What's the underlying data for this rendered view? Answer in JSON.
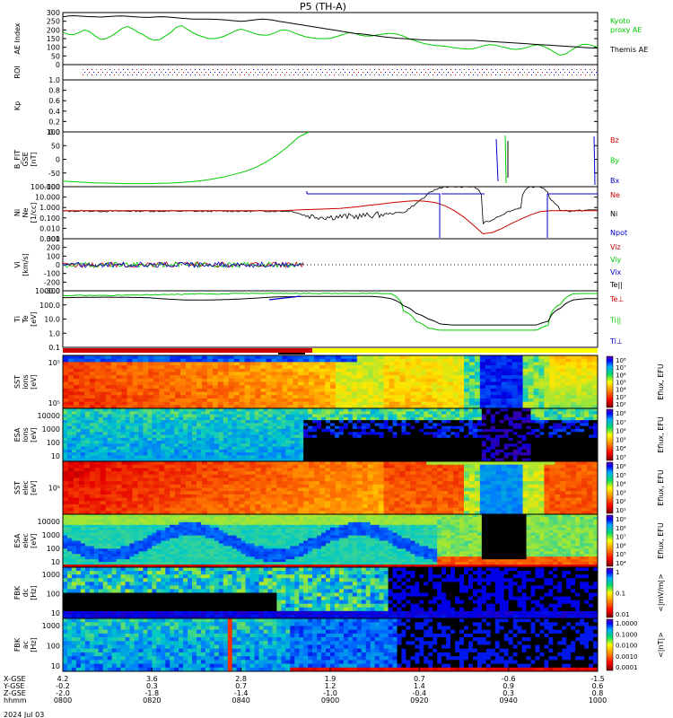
{
  "title": "P5 (TH-A)",
  "chart_data": {
    "type": "line",
    "title": "P5 (TH-A)",
    "time_axis": {
      "tick_labels": [
        "0800",
        "0820",
        "0840",
        "0900",
        "0920",
        "0940",
        "1000"
      ],
      "ephemeris_rows": [
        {
          "label": "X-GSE",
          "values": [
            "4.2",
            "3.6",
            "2.8",
            "1.9",
            "0.7",
            "-0.6",
            "-1.5"
          ]
        },
        {
          "label": "Y-GSE",
          "values": [
            "-0.2",
            "0.3",
            "0.7",
            "1.2",
            "1.4",
            "0.9",
            "0.6"
          ]
        },
        {
          "label": "Z-GSE",
          "values": [
            "-2.0",
            "-1.8",
            "-1.4",
            "-1.0",
            "-0.4",
            "0.3",
            "0.8"
          ]
        },
        {
          "label": "hhmm",
          "values": [
            "0800",
            "0820",
            "0840",
            "0900",
            "0920",
            "0940",
            "1000"
          ]
        }
      ],
      "date_label": "2024 Jul 03"
    },
    "panels": [
      {
        "id": "ae",
        "ylabel": "AE Index",
        "type": "line",
        "ylim": [
          0,
          300
        ],
        "yticks": [
          "300",
          "250",
          "200",
          "150",
          "100",
          "50",
          "0"
        ],
        "legend": [
          "Kyoto",
          "proxy AE",
          "Themis AE"
        ],
        "series": [
          {
            "name": "Kyoto proxy AE",
            "color": "#00cc00",
            "values": [
              185,
              175,
              172,
              185,
              200,
              190,
              165,
              145,
              150,
              165,
              185,
              210,
              220,
              205,
              185,
              170,
              150,
              140,
              145,
              165,
              185,
              215,
              225,
              205,
              185,
              170,
              160,
              150,
              150,
              155,
              165,
              180,
              195,
              205,
              195,
              185,
              175,
              170,
              170,
              180,
              195,
              200,
              195,
              180,
              170,
              160,
              155,
              150,
              150,
              150,
              155,
              165,
              175,
              185,
              180,
              170,
              165,
              165,
              170,
              175,
              180,
              180,
              175,
              165,
              150,
              140,
              130,
              120,
              115,
              110,
              108,
              105,
              100,
              95,
              92,
              90,
              92,
              100,
              110,
              115,
              112,
              105,
              98,
              90,
              88,
              92,
              100,
              110,
              115,
              105,
              90,
              72,
              55,
              60,
              80,
              100,
              115,
              118,
              110,
              100
            ]
          },
          {
            "name": "Themis AE",
            "color": "#000000",
            "values": [
              275,
              280,
              282,
              280,
              278,
              276,
              275,
              274,
              276,
              278,
              280,
              281,
              279,
              276,
              274,
              273,
              272,
              274,
              276,
              275,
              273,
              270,
              267,
              265,
              263,
              262,
              262,
              262,
              261,
              260,
              258,
              255,
              252,
              250,
              252,
              256,
              260,
              262,
              260,
              256,
              250,
              245,
              240,
              235,
              230,
              225,
              220,
              215,
              210,
              205,
              200,
              195,
              190,
              185,
              180,
              178,
              174,
              170,
              166,
              162,
              158,
              155,
              152,
              150,
              148,
              146,
              144,
              142,
              141,
              140,
              140,
              140,
              140,
              140,
              140,
              140,
              140,
              138,
              136,
              134,
              132,
              130,
              128,
              126,
              124,
              122,
              120,
              118,
              116,
              114,
              112,
              110,
              108,
              106,
              104,
              102,
              100,
              98,
              96,
              95
            ]
          }
        ]
      },
      {
        "id": "roi",
        "ylabel": "ROI",
        "type": "flags"
      },
      {
        "id": "kp",
        "ylabel": "Kp",
        "type": "line",
        "ylim": [
          0,
          1.0
        ],
        "yticks": [
          "1.0",
          "0.8",
          "0.6",
          "0.4",
          "0.2",
          "0.0"
        ],
        "series": []
      },
      {
        "id": "bfield",
        "ylabel": [
          "B_FIT",
          "GSE",
          "[nT]"
        ],
        "type": "line",
        "ylim": [
          -100,
          100
        ],
        "yticks": [
          "100",
          "50",
          "0",
          "-50",
          "-100"
        ],
        "legend": [
          "Bz",
          "By",
          "Bx"
        ],
        "series": [
          {
            "name": "By",
            "color": "#00cc00",
            "values": [
              -80,
              -82,
              -84,
              -86,
              -87,
              -88,
              -89,
              -89,
              -89,
              -88,
              -87,
              -85,
              -82,
              -78,
              -72,
              -65,
              -55,
              -45,
              -30,
              -10,
              15,
              45,
              80,
              100
            ]
          }
        ]
      },
      {
        "id": "density",
        "ylabel": [
          "Ni",
          "Ne",
          "[1/cc]"
        ],
        "type": "line",
        "yscale": "log",
        "ylim": [
          0.001,
          100
        ],
        "yticks": [
          "100.000",
          "10.000",
          "1.000",
          "0.100",
          "0.010",
          "0.001"
        ],
        "legend": [
          "Ne",
          "Ni",
          "Npot"
        ],
        "series": [
          {
            "name": "Ni",
            "color": "#000000",
            "values": [
              0.45,
              0.45,
              0.46,
              0.45,
              0.45,
              0.44,
              0.45,
              0.45,
              0.46,
              0.46,
              0.45,
              0.45,
              0.45,
              0.45,
              0.44,
              0.44,
              0.45,
              0.45,
              0.45,
              0.44,
              0.45,
              0.45,
              0.45,
              0.45,
              0.45,
              0.2,
              0.15,
              0.13,
              0.12,
              0.13,
              0.14,
              0.15,
              0.17,
              0.2,
              0.25,
              0.3,
              0.4,
              2,
              10,
              50,
              100,
              100,
              100,
              100,
              0.03,
              0.06,
              0.2,
              0.5,
              1,
              100,
              100,
              5,
              0.6,
              0.45,
              0.5,
              0.55,
              0.6
            ]
          },
          {
            "name": "Ne",
            "color": "#cc0000",
            "values": [
              0.5,
              0.5,
              0.5,
              0.5,
              0.5,
              0.5,
              0.5,
              0.5,
              0.5,
              0.5,
              0.5,
              0.5,
              0.5,
              0.5,
              0.5,
              0.5,
              0.5,
              0.5,
              0.5,
              0.5,
              0.5,
              0.5,
              0.5,
              0.5,
              0.55,
              0.6,
              0.65,
              0.7,
              0.75,
              0.8,
              1,
              1.2,
              1.6,
              2,
              2.6,
              3.2,
              4,
              4.5,
              4,
              3,
              1.5,
              0.5,
              0.12,
              0.02,
              0.003,
              0.004,
              0.01,
              0.03,
              0.08,
              0.2,
              0.4,
              0.5,
              0.5,
              0.5,
              0.5,
              0.5,
              0.5
            ]
          },
          {
            "name": "Npot",
            "color": "#0000cc",
            "values": [
              null,
              null,
              null,
              null,
              null,
              null,
              null,
              null,
              null,
              null,
              null,
              null,
              null,
              null,
              null,
              null,
              null,
              null,
              null,
              null,
              null,
              null,
              null,
              null,
              null,
              null,
              50,
              50,
              50,
              50,
              50,
              50,
              50,
              50,
              50,
              50,
              50,
              50,
              0.001,
              0.001,
              50,
              50,
              50,
              50,
              50,
              50,
              50,
              0.001,
              50,
              50,
              50,
              50,
              50,
              50,
              50,
              50,
              50
            ]
          }
        ]
      },
      {
        "id": "velocity",
        "ylabel": [
          "Vi",
          "[km/s]"
        ],
        "type": "line",
        "ylim": [
          -350,
          350
        ],
        "yticks": [
          "300",
          "200",
          "100",
          "0",
          "-100",
          "-200",
          "-300"
        ],
        "legend": [
          "Viz",
          "Viy",
          "Vix",
          "Te||"
        ],
        "series": [
          {
            "name": "Viz",
            "color": "#cc0000",
            "values": [
              0,
              2,
              -3,
              1,
              -2,
              3,
              0,
              -1,
              2,
              -2,
              1,
              0
            ]
          },
          {
            "name": "Viy",
            "color": "#00cc00",
            "values": [
              0,
              -3,
              2,
              -1,
              3,
              -2,
              1,
              0,
              -2,
              2,
              -1,
              0
            ]
          }
        ]
      },
      {
        "id": "temperature",
        "ylabel": [
          "Ti",
          "Te",
          "[eV]"
        ],
        "type": "line",
        "yscale": "log",
        "ylim": [
          0.1,
          2000
        ],
        "yticks": [
          "1000.0",
          "100.0",
          "10.0",
          "1.0",
          "0.1"
        ],
        "legend": [
          "Te⊥",
          "Ti||",
          "Ti⊥"
        ],
        "series": [
          {
            "name": "Ti||",
            "color": "#00cc00",
            "values": [
              850,
              900,
              900,
              880,
              900,
              920,
              950,
              980,
              1000,
              1050,
              1100,
              1150,
              1200,
              1150,
              1200,
              1250,
              1300,
              1300,
              1250,
              1300,
              1280,
              1250,
              1260,
              1250,
              1250,
              1240,
              1250,
              1200,
              60,
              10,
              3,
              2,
              2,
              2,
              2,
              2,
              2,
              2,
              2,
              2,
              5,
              200,
              1200,
              1250,
              1250
            ]
          },
          {
            "name": "Te⊥",
            "color": "#000000",
            "values": [
              600,
              620,
              640,
              650,
              650,
              640,
              620,
              600,
              500,
              450,
              400,
              400,
              400,
              420,
              450,
              500,
              560,
              650,
              700,
              720,
              740,
              750,
              760,
              760,
              760,
              760,
              700,
              500,
              150,
              40,
              15,
              6,
              5,
              5,
              5,
              5,
              5,
              5,
              5,
              5,
              10,
              100,
              400,
              500,
              500
            ]
          }
        ]
      },
      {
        "id": "sst_ion",
        "ylabel": [
          "SST",
          "ions",
          "[eV]"
        ],
        "type": "heatmap",
        "ytick_labels": [
          "10⁵",
          "10⁵"
        ],
        "colorbar_label": "Eflux, EFU",
        "colorbar_ticks": [
          "10⁸",
          "10⁷",
          "10⁶",
          "10⁵",
          "10⁴",
          "10³",
          "10²"
        ]
      },
      {
        "id": "esa_ion",
        "ylabel": [
          "ESA",
          "ions",
          "[eV]"
        ],
        "type": "heatmap",
        "ytick_labels": [
          "10000",
          "1000",
          "100",
          "10"
        ],
        "colorbar_label": "Eflux, EFU",
        "colorbar_ticks": [
          "10⁸",
          "10⁷",
          "10⁶",
          "10⁵",
          "10⁴",
          "10³"
        ]
      },
      {
        "id": "sst_elec",
        "ylabel": [
          "SST",
          "elec",
          "[eV]"
        ],
        "type": "heatmap",
        "ytick_labels": [
          "10⁵"
        ],
        "colorbar_label": "Eflux, EFU",
        "colorbar_ticks": [
          "10⁶",
          "10⁵",
          "10⁴",
          "10³",
          "10²",
          "10¹"
        ]
      },
      {
        "id": "esa_elec",
        "ylabel": [
          "ESA",
          "elec",
          "[eV]"
        ],
        "type": "heatmap",
        "ytick_labels": [
          "10000",
          "1000",
          "100",
          "10"
        ],
        "colorbar_label": "Eflux, EFU",
        "colorbar_ticks": [
          "10⁹",
          "10⁸",
          "10⁷",
          "10⁶",
          "10⁵",
          "10⁴"
        ]
      },
      {
        "id": "fbk_e",
        "ylabel": [
          "FBK",
          "dc",
          "[Hz]"
        ],
        "type": "heatmap",
        "ytick_labels": [
          "1000",
          "100",
          "10"
        ],
        "colorbar_label": "<|mV/m|>",
        "colorbar_ticks": [
          "1",
          "0.1",
          "0.01"
        ]
      },
      {
        "id": "fbk_b",
        "ylabel": [
          "FBK",
          "ac",
          "[Hz]"
        ],
        "type": "heatmap",
        "ytick_labels": [
          "1000",
          "100",
          "10"
        ],
        "colorbar_label": "<|nT|>",
        "colorbar_ticks": [
          "1.0000",
          "0.1000",
          "0.0100",
          "0.0010",
          "0.0001"
        ]
      }
    ]
  }
}
